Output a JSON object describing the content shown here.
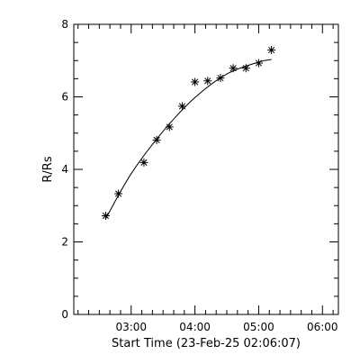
{
  "chart_data": {
    "type": "scatter",
    "title": "",
    "xlabel": "Start Time (23-Feb-25 02:06:07)",
    "ylabel": "R/Rs",
    "x_tick_labels": [
      "03:00",
      "04:00",
      "05:00",
      "06:00"
    ],
    "y_tick_labels": [
      "0",
      "2",
      "4",
      "6",
      "8"
    ],
    "x_ticks": [
      "03:00",
      "04:00",
      "05:00",
      "06:00"
    ],
    "y_ticks": [
      0,
      2,
      4,
      6,
      8
    ],
    "xlim": [
      "02:06",
      "06:15"
    ],
    "ylim": [
      0,
      8
    ],
    "grid": false,
    "marker": "asterisk",
    "points": [
      {
        "x": "02:36",
        "y": 2.72
      },
      {
        "x": "02:48",
        "y": 3.33
      },
      {
        "x": "03:12",
        "y": 4.19
      },
      {
        "x": "03:24",
        "y": 4.81
      },
      {
        "x": "03:36",
        "y": 5.17
      },
      {
        "x": "03:48",
        "y": 5.74
      },
      {
        "x": "04:00",
        "y": 6.41
      },
      {
        "x": "04:12",
        "y": 6.44
      },
      {
        "x": "04:24",
        "y": 6.52
      },
      {
        "x": "04:36",
        "y": 6.79
      },
      {
        "x": "04:48",
        "y": 6.79
      },
      {
        "x": "05:00",
        "y": 6.93
      },
      {
        "x": "05:12",
        "y": 7.29
      }
    ],
    "fit": {
      "type": "quadratic",
      "x": [
        "02:36",
        "03:00",
        "03:30",
        "04:00",
        "04:30",
        "05:00",
        "05:12"
      ],
      "y": [
        2.64,
        3.88,
        5.05,
        5.98,
        6.63,
        6.96,
        7.03
      ]
    }
  }
}
